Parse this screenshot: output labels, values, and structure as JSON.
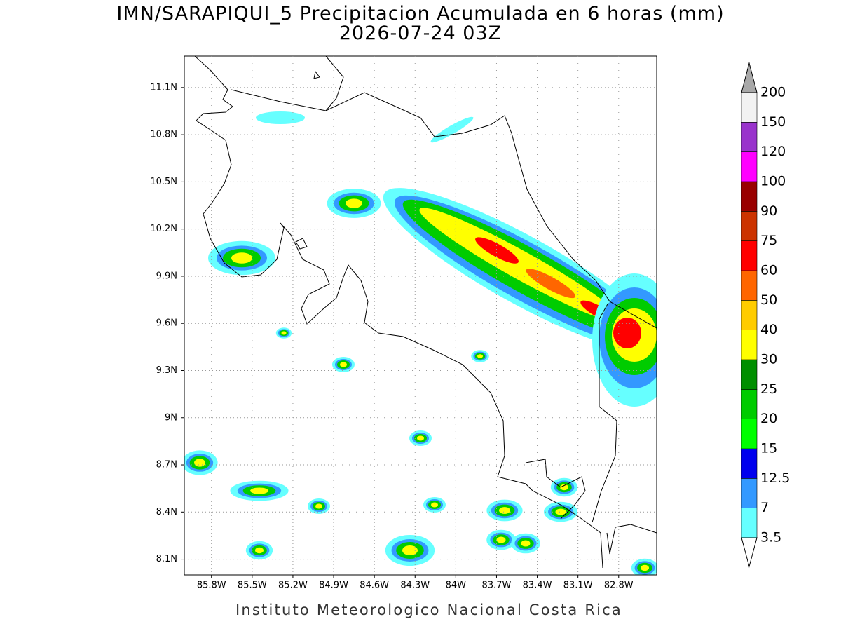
{
  "title": "IMN/SARAPIQUI_5 Precipitacion Acumulada en 6 horas (mm)",
  "subtitle": "2026-07-24 03Z",
  "footer": "Instituto Meteorologico Nacional Costa Rica",
  "map": {
    "xlim": [
      -86.0,
      -82.52
    ],
    "ylim": [
      8.0,
      11.3
    ],
    "grid": true,
    "xticks": [
      {
        "value": -85.8,
        "label": "85.8W"
      },
      {
        "value": -85.5,
        "label": "85.5W"
      },
      {
        "value": -85.2,
        "label": "85.2W"
      },
      {
        "value": -84.9,
        "label": "84.9W"
      },
      {
        "value": -84.6,
        "label": "84.6W"
      },
      {
        "value": -84.3,
        "label": "84.3W"
      },
      {
        "value": -84.0,
        "label": "84W"
      },
      {
        "value": -83.7,
        "label": "83.7W"
      },
      {
        "value": -83.4,
        "label": "83.4W"
      },
      {
        "value": -83.1,
        "label": "83.1W"
      },
      {
        "value": -82.8,
        "label": "82.8W"
      }
    ],
    "yticks": [
      {
        "value": 8.1,
        "label": "8.1N"
      },
      {
        "value": 8.4,
        "label": "8.4N"
      },
      {
        "value": 8.7,
        "label": "8.7N"
      },
      {
        "value": 9.0,
        "label": "9N"
      },
      {
        "value": 9.3,
        "label": "9.3N"
      },
      {
        "value": 9.6,
        "label": "9.6N"
      },
      {
        "value": 9.9,
        "label": "9.9N"
      },
      {
        "value": 10.2,
        "label": "10.2N"
      },
      {
        "value": 10.5,
        "label": "10.5N"
      },
      {
        "value": 10.8,
        "label": "10.8N"
      },
      {
        "value": 11.1,
        "label": "11.1N"
      }
    ]
  },
  "colorbar": {
    "levels": [
      3.5,
      7,
      12.5,
      15,
      20,
      25,
      30,
      40,
      50,
      60,
      75,
      90,
      100,
      120,
      150,
      200
    ],
    "colors": [
      "#66ffff",
      "#3399ff",
      "#0000ee",
      "#00ff00",
      "#00cc00",
      "#008f00",
      "#ffff00",
      "#ffcc00",
      "#ff6600",
      "#ff0000",
      "#cc3300",
      "#990000",
      "#ff00ff",
      "#9933cc",
      "#f2f2f2"
    ],
    "under_color": "#ffffff",
    "over_color": "#a8a8a8"
  }
}
